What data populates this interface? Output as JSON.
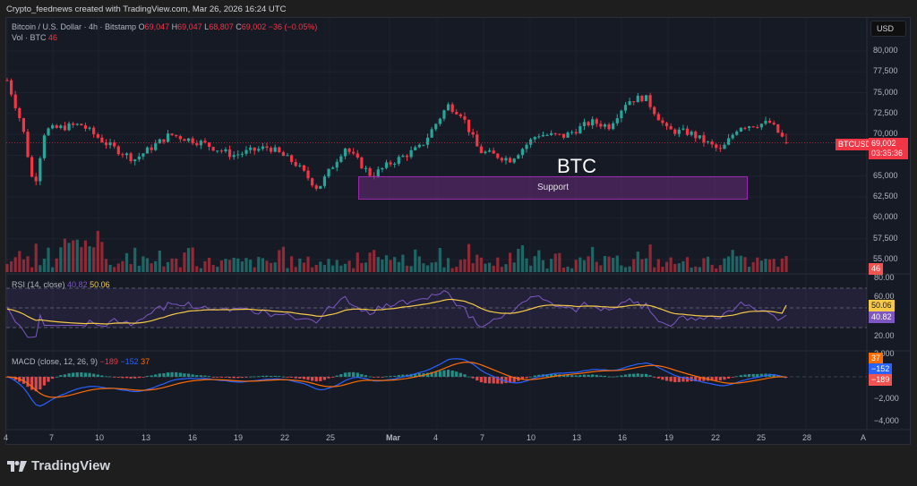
{
  "header": {
    "attribution": "Crypto_feednews created with TradingView.com, Mar 26, 2026 16:24 UTC"
  },
  "legend": {
    "symbol": "Bitcoin / U.S. Dollar · 4h · Bitstamp",
    "o_label": "O",
    "o": "69,047",
    "h_label": "H",
    "h": "69,047",
    "l_label": "L",
    "l": "68,807",
    "c_label": "C",
    "c": "69,002",
    "change": "−36 (−0.05%)",
    "vol_label": "Vol · BTC",
    "vol": "46"
  },
  "rsi_legend": {
    "label": "RSI (14, close)",
    "rsi": "40.82",
    "ma": "50.06"
  },
  "macd_legend": {
    "label": "MACD (close, 12, 26, 9)",
    "hist": "−189",
    "macd": "−152",
    "signal": "37"
  },
  "currency_button": "USD",
  "price_axis": [
    "80,000",
    "77,500",
    "75,000",
    "72,500",
    "70,000",
    "67,500",
    "65,000",
    "62,500",
    "60,000",
    "57,500",
    "55,000"
  ],
  "rsi_axis": [
    "80.00",
    "60.00",
    "20.00"
  ],
  "macd_axis": [
    "2,000",
    "−2,000",
    "−4,000"
  ],
  "tags": {
    "symbol_tag": "BTCUSD",
    "price": "69,002",
    "countdown": "03:35:36",
    "volume": "46",
    "rsi_ma": "50.06",
    "rsi": "40.82",
    "macd_signal": "37",
    "macd_line": "−152",
    "macd_hist": "−189"
  },
  "time_axis": [
    "4",
    "7",
    "10",
    "13",
    "16",
    "19",
    "22",
    "25",
    "Mar",
    "4",
    "7",
    "10",
    "13",
    "16",
    "19",
    "22",
    "25",
    "28",
    "A"
  ],
  "annotations": {
    "title": "BTC",
    "support_label": "Support"
  },
  "brand": "TradingView",
  "colors": {
    "up": "#26a69a",
    "down": "#f23645",
    "rsi": "#7e57c2",
    "rsi_ma": "#f7c948",
    "macd": "#2962ff",
    "signal": "#ff6d00",
    "support_fill": "#672b7a",
    "support_border": "#9c27b0"
  },
  "chart_data": {
    "type": "candlestick",
    "title": "Bitcoin / U.S. Dollar · 4h · Bitstamp",
    "ylabel": "USD",
    "ylim": [
      54000,
      82000
    ],
    "x_ticks": [
      "4",
      "7",
      "10",
      "13",
      "16",
      "19",
      "22",
      "25",
      "Mar",
      "4",
      "7",
      "10",
      "13",
      "16",
      "19",
      "22",
      "25",
      "28"
    ],
    "close_path_approx": [
      {
        "date": "Feb 4",
        "close": 76500
      },
      {
        "date": "Feb 5",
        "close": 71000
      },
      {
        "date": "Feb 6",
        "close": 63500
      },
      {
        "date": "Feb 6b",
        "close": 70500
      },
      {
        "date": "Feb 8",
        "close": 71200
      },
      {
        "date": "Feb 10",
        "close": 68800
      },
      {
        "date": "Feb 12",
        "close": 67000
      },
      {
        "date": "Feb 14",
        "close": 70000
      },
      {
        "date": "Feb 16",
        "close": 69000
      },
      {
        "date": "Feb 18",
        "close": 67500
      },
      {
        "date": "Feb 21",
        "close": 68500
      },
      {
        "date": "Feb 23",
        "close": 66500
      },
      {
        "date": "Feb 24",
        "close": 63500
      },
      {
        "date": "Feb 26",
        "close": 68500
      },
      {
        "date": "Feb 28",
        "close": 65000
      },
      {
        "date": "Mar 1",
        "close": 66500
      },
      {
        "date": "Mar 3",
        "close": 68500
      },
      {
        "date": "Mar 4",
        "close": 73500
      },
      {
        "date": "Mar 5",
        "close": 72500
      },
      {
        "date": "Mar 7",
        "close": 68000
      },
      {
        "date": "Mar 9",
        "close": 67000
      },
      {
        "date": "Mar 10",
        "close": 70000
      },
      {
        "date": "Mar 12",
        "close": 69800
      },
      {
        "date": "Mar 14",
        "close": 71500
      },
      {
        "date": "Mar 15",
        "close": 71000
      },
      {
        "date": "Mar 16",
        "close": 74000
      },
      {
        "date": "Mar 17",
        "close": 74500
      },
      {
        "date": "Mar 18",
        "close": 70500
      },
      {
        "date": "Mar 20",
        "close": 70200
      },
      {
        "date": "Mar 22",
        "close": 68000
      },
      {
        "date": "Mar 23",
        "close": 71000
      },
      {
        "date": "Mar 24",
        "close": 71200
      },
      {
        "date": "Mar 25",
        "close": 71400
      },
      {
        "date": "Mar 26",
        "close": 69002
      }
    ],
    "last": {
      "open": 69047,
      "high": 69047,
      "low": 68807,
      "close": 69002,
      "change": -36,
      "change_pct": -0.05,
      "volume": 46
    },
    "support_zone": {
      "from": 62500,
      "to": 65000,
      "label": "Support"
    },
    "indicators": {
      "rsi": {
        "period": 14,
        "value": 40.82,
        "ma": 50.06,
        "bands": [
          70,
          50,
          30
        ],
        "axis": [
          20,
          60,
          80
        ]
      },
      "macd": {
        "fast": 12,
        "slow": 26,
        "signal": 9,
        "histogram": -189,
        "macd": -152,
        "signal_value": 37,
        "axis": [
          2000,
          -2000,
          -4000
        ]
      }
    }
  }
}
